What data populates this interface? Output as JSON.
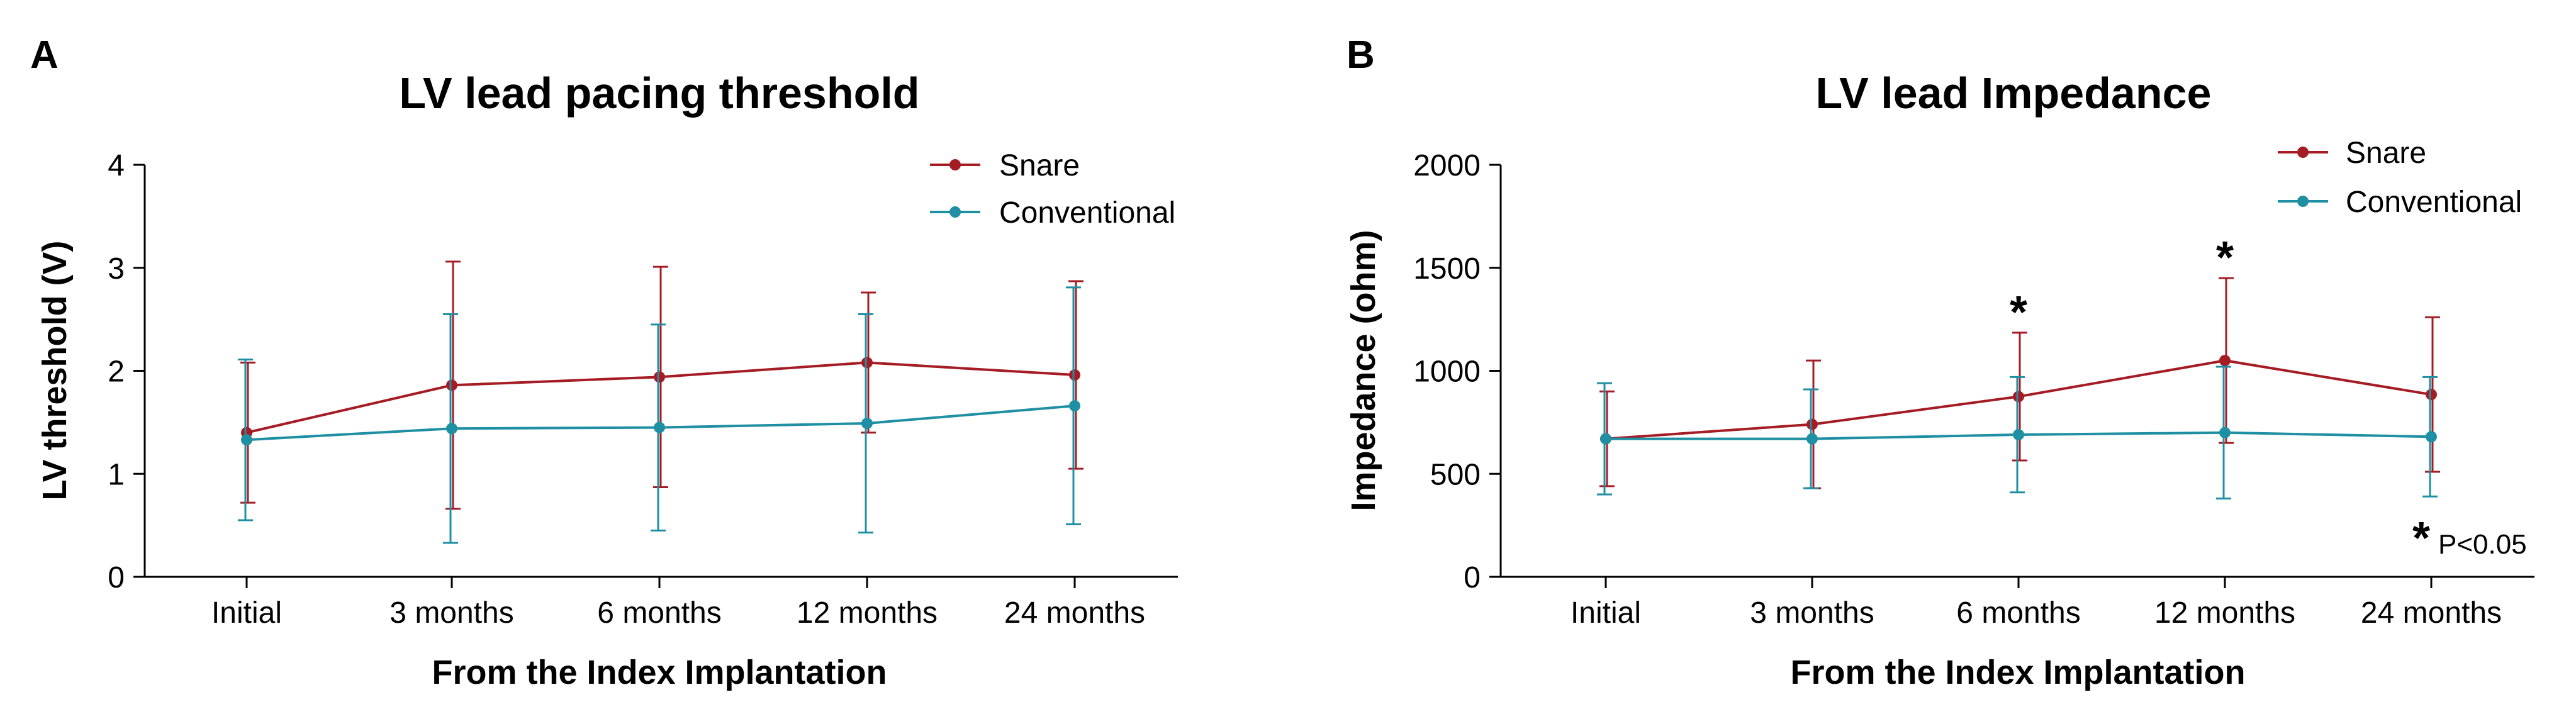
{
  "chart_data": [
    {
      "type": "line",
      "panel_label": "A",
      "title": "LV lead pacing threshold",
      "xlabel": "From the Index Implantation",
      "ylabel": "LV threshold (V)",
      "categories": [
        "Initial",
        "3 months",
        "6 months",
        "12 months",
        "24 months"
      ],
      "ylim": [
        0,
        4
      ],
      "yticks": [
        "0",
        "1",
        "2",
        "3",
        "4"
      ],
      "ytick_values": [
        0,
        1,
        2,
        3,
        4
      ],
      "grid": false,
      "legend_position": "top-right",
      "series": [
        {
          "name": "Snare",
          "color": "#a51c24",
          "values": [
            1.4,
            1.86,
            1.94,
            2.08,
            1.96
          ],
          "errors": [
            0.68,
            1.2,
            1.07,
            0.68,
            0.91
          ]
        },
        {
          "name": "Conventional",
          "color": "#1f8fa3",
          "values": [
            1.33,
            1.44,
            1.45,
            1.49,
            1.66
          ],
          "errors": [
            0.78,
            1.11,
            1.0,
            1.06,
            1.15
          ]
        }
      ],
      "annotations": []
    },
    {
      "type": "line",
      "panel_label": "B",
      "title": "LV lead Impedance",
      "xlabel": "From the Index Implantation",
      "ylabel": "Impedance (ohm)",
      "categories": [
        "Initial",
        "3 months",
        "6 months",
        "12 months",
        "24 months"
      ],
      "ylim": [
        0,
        2000
      ],
      "yticks": [
        "0",
        "500",
        "1000",
        "1500",
        "2000"
      ],
      "ytick_values": [
        0,
        500,
        1000,
        1500,
        2000
      ],
      "grid": false,
      "legend_position": "top-right",
      "series": [
        {
          "name": "Snare",
          "color": "#a51c24",
          "values": [
            670,
            740,
            875,
            1050,
            885
          ],
          "errors": [
            230,
            310,
            310,
            400,
            375
          ]
        },
        {
          "name": "Conventional",
          "color": "#1f8fa3",
          "values": [
            670,
            670,
            690,
            700,
            680
          ],
          "errors": [
            270,
            240,
            280,
            320,
            290
          ]
        }
      ],
      "annotations": [
        {
          "text": "*",
          "category_index": 2
        },
        {
          "text": "*",
          "category_index": 3
        }
      ],
      "significance_note": {
        "symbol": "*",
        "text": "P<0.05"
      }
    }
  ]
}
